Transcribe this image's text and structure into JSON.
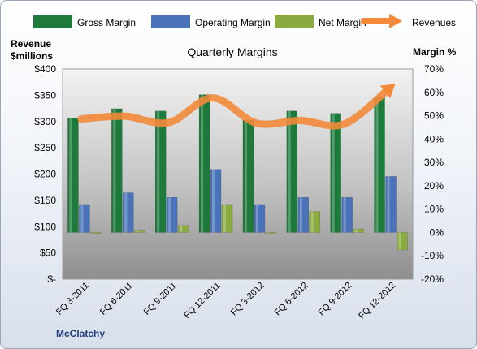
{
  "chart_data": {
    "type": "bar",
    "title": "Quarterly Margins",
    "company": "McClatchy",
    "categories": [
      "FQ 3-2011",
      "FQ 6-2011",
      "FQ 9-2011",
      "FQ 12-2011",
      "FQ 3-2012",
      "FQ 6-2012",
      "FQ 9-2012",
      "FQ 12-2012"
    ],
    "series": [
      {
        "name": "Gross Margin",
        "kind": "bar",
        "axis": "right",
        "color": "#1e7a3b",
        "values": [
          49,
          53,
          52,
          59,
          48,
          52,
          51,
          58
        ]
      },
      {
        "name": "Operating Margin",
        "kind": "bar",
        "axis": "right",
        "color": "#4a72b8",
        "values": [
          12,
          17,
          15,
          27,
          12,
          15,
          15,
          24
        ]
      },
      {
        "name": "Net Margin",
        "kind": "bar",
        "axis": "right",
        "color": "#8aab3f",
        "values": [
          -0.3,
          1,
          3,
          12,
          -0.3,
          9,
          1.5,
          -7.5
        ]
      },
      {
        "name": "Revenues",
        "kind": "line",
        "axis": "left",
        "color": "#f28a3a",
        "values": [
          305,
          310,
          298,
          345,
          297,
          302,
          295,
          360
        ]
      }
    ],
    "left_axis": {
      "title_line1": "Revenue",
      "title_line2": "$millions",
      "min": 0,
      "max": 400,
      "step": 50,
      "ticks": [
        "$-",
        "$50",
        "$100",
        "$150",
        "$200",
        "$250",
        "$300",
        "$350",
        "$400"
      ]
    },
    "right_axis": {
      "title": "Margin %",
      "min": -20,
      "max": 70,
      "step": 10,
      "ticks": [
        "-20%",
        "-10%",
        "0%",
        "10%",
        "20%",
        "30%",
        "40%",
        "50%",
        "60%",
        "70%"
      ]
    },
    "legend_position": "top",
    "grid": false
  }
}
